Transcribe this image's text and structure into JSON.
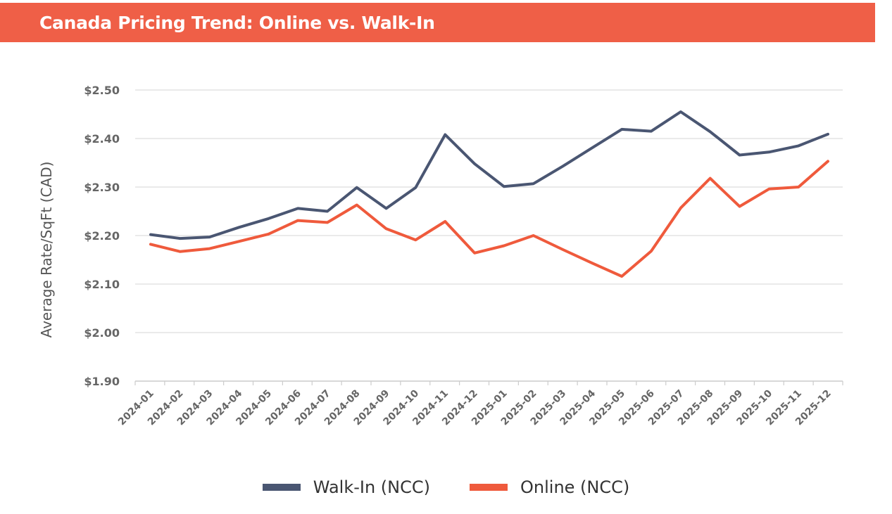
{
  "header": {
    "title": "Canada Pricing Trend: Online vs. Walk-In"
  },
  "colors": {
    "banner": "#ef5f47",
    "walk_in": "#4a5672",
    "online": "#ef5a3c",
    "grid": "#dddddd",
    "axis_text": "#666666"
  },
  "chart_data": {
    "type": "line",
    "title": "Canada Pricing Trend: Online vs. Walk-In",
    "xlabel": "",
    "ylabel": "Average Rate/SqFt (CAD)",
    "ylim": [
      1.9,
      2.5
    ],
    "yticks": [
      "$1.90",
      "$2.00",
      "$2.10",
      "$2.20",
      "$2.30",
      "$2.40",
      "$2.50"
    ],
    "ytick_values": [
      1.9,
      2.0,
      2.1,
      2.2,
      2.3,
      2.4,
      2.5
    ],
    "grid": true,
    "legend_position": "bottom-center",
    "categories": [
      "2024-01",
      "2024-02",
      "2024-03",
      "2024-04",
      "2024-05",
      "2024-06",
      "2024-07",
      "2024-08",
      "2024-09",
      "2024-10",
      "2024-11",
      "2024-12",
      "2025-01",
      "2025-02",
      "2025-03",
      "2025-04",
      "2025-05",
      "2025-06",
      "2025-07",
      "2025-08",
      "2025-09",
      "2025-10",
      "2025-11",
      "2025-12"
    ],
    "series": [
      {
        "name": "Walk-In (NCC)",
        "color": "#4a5672",
        "values": [
          2.202,
          2.194,
          2.197,
          2.217,
          2.235,
          2.256,
          2.25,
          2.299,
          2.256,
          2.299,
          2.408,
          2.348,
          2.301,
          2.307,
          2.343,
          2.381,
          2.419,
          2.415,
          2.455,
          2.414,
          2.366,
          2.372,
          2.385,
          2.409
        ]
      },
      {
        "name": "Online (NCC)",
        "color": "#ef5a3c",
        "values": [
          2.182,
          2.167,
          2.173,
          2.188,
          2.203,
          2.231,
          2.227,
          2.263,
          2.214,
          2.191,
          2.229,
          2.164,
          2.179,
          2.2,
          2.171,
          2.143,
          2.116,
          2.168,
          2.257,
          2.318,
          2.26,
          2.296,
          2.3,
          2.353
        ]
      }
    ]
  }
}
